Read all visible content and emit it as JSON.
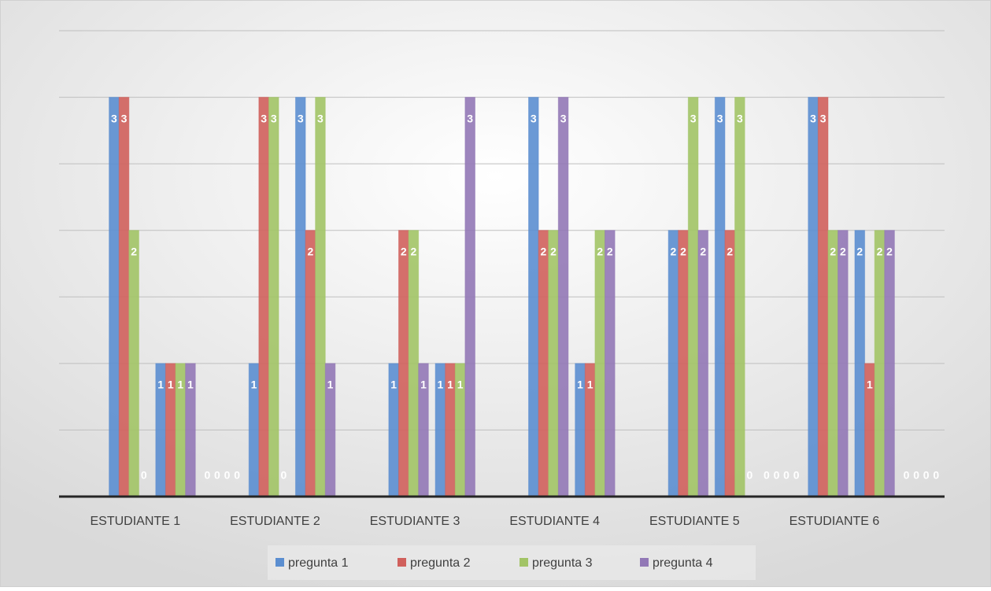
{
  "chart_data": {
    "type": "bar",
    "categories": [
      null,
      "ESTUDIANTE 1",
      null,
      null,
      "ESTUDIANTE 2",
      null,
      null,
      "ESTUDIANTE 3",
      null,
      null,
      "ESTUDIANTE 4",
      null,
      null,
      "ESTUDIANTE 5",
      null,
      null,
      "ESTUDIANTE 6",
      null,
      null
    ],
    "series": [
      {
        "name": "pregunta 1",
        "color": "#5b8ed0",
        "values": [
          null,
          3,
          1,
          0,
          1,
          3,
          null,
          1,
          1,
          null,
          3,
          1,
          null,
          2,
          3,
          0,
          3,
          2,
          0
        ]
      },
      {
        "name": "pregunta 2",
        "color": "#d0605c",
        "values": [
          null,
          3,
          1,
          0,
          3,
          2,
          null,
          2,
          1,
          null,
          2,
          1,
          null,
          2,
          2,
          0,
          3,
          1,
          0
        ]
      },
      {
        "name": "pregunta 3",
        "color": "#a2c466",
        "values": [
          null,
          2,
          1,
          0,
          3,
          3,
          null,
          2,
          1,
          null,
          2,
          2,
          null,
          3,
          3,
          0,
          2,
          2,
          0
        ]
      },
      {
        "name": "pregunta 4",
        "color": "#9278b6",
        "values": [
          null,
          0,
          1,
          0,
          0,
          1,
          null,
          1,
          3,
          null,
          3,
          2,
          null,
          2,
          0,
          0,
          2,
          2,
          0
        ]
      }
    ],
    "ylim": [
      0,
      3.5
    ],
    "yticks": [
      0,
      0.5,
      1,
      1.5,
      2,
      2.5,
      3,
      3.5
    ],
    "grid": true,
    "legend": "bottom"
  }
}
